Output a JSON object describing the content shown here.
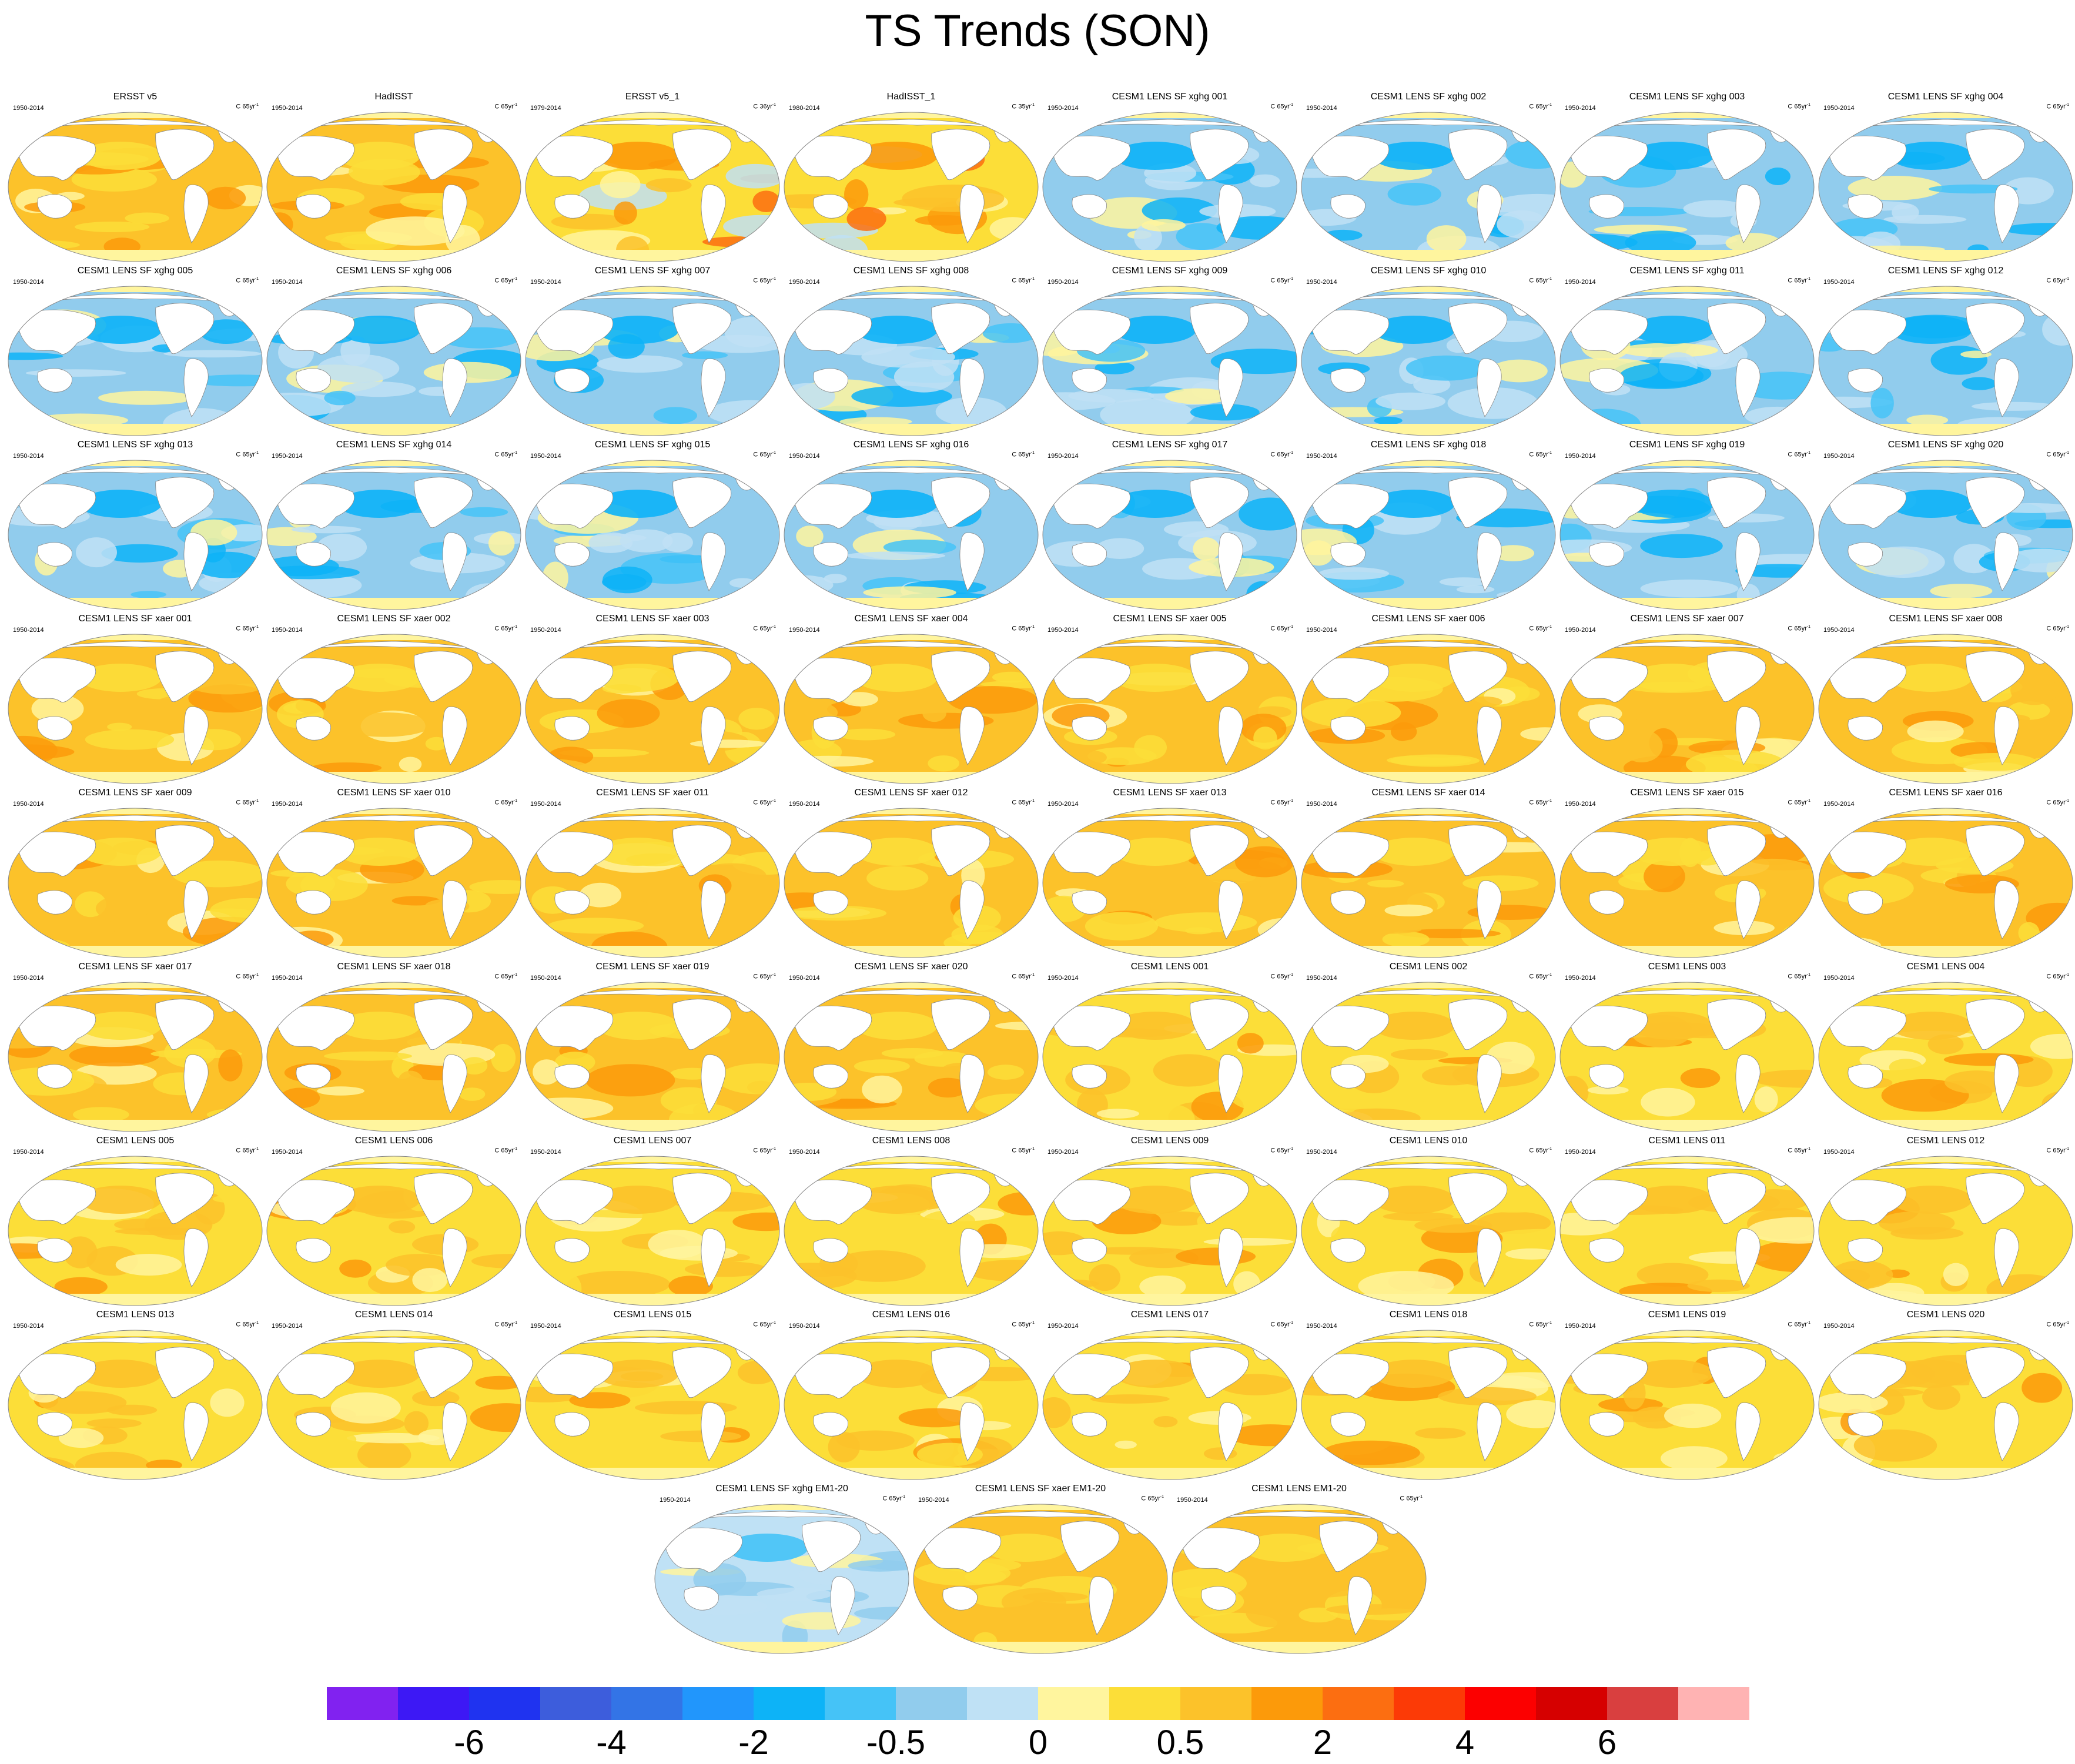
{
  "title": "TS Trends (SON)",
  "colors": {
    "land": "#ffffff",
    "outline": "#888888",
    "scale": [
      "#8122f0",
      "#3d18f5",
      "#1f33f0",
      "#3d5ddc",
      "#3374e6",
      "#2196fc",
      "#0db3f7",
      "#45c3f7",
      "#91cced",
      "#bfe1f5",
      "#fff59e",
      "#fcde38",
      "#fcc22a",
      "#fc9a0a",
      "#fc6e11",
      "#fc3a06",
      "#fc0000",
      "#d60000",
      "#d93f3f",
      "#ffb3b3"
    ]
  },
  "colorbar": {
    "labels": [
      "-6",
      "-4",
      "-2",
      "-0.5",
      "0",
      "0.5",
      "2",
      "4",
      "6"
    ]
  },
  "panels": [
    {
      "title": "ERSST v5",
      "years": "1950-2014",
      "units": "C 65yr",
      "regime": "obs"
    },
    {
      "title": "HadISST",
      "years": "1950-2014",
      "units": "C 65yr",
      "regime": "obs"
    },
    {
      "title": "ERSST v5_1",
      "years": "1979-2014",
      "units": "C 36yr",
      "regime": "obs2"
    },
    {
      "title": "HadISST_1",
      "years": "1980-2014",
      "units": "C 35yr",
      "regime": "obs2"
    },
    {
      "title": "CESM1 LENS SF xghg 001",
      "years": "1950-2014",
      "units": "C 65yr",
      "regime": "cool"
    },
    {
      "title": "CESM1 LENS SF xghg 002",
      "years": "1950-2014",
      "units": "C 65yr",
      "regime": "cool"
    },
    {
      "title": "CESM1 LENS SF xghg 003",
      "years": "1950-2014",
      "units": "C 65yr",
      "regime": "cool"
    },
    {
      "title": "CESM1 LENS SF xghg 004",
      "years": "1950-2014",
      "units": "C 65yr",
      "regime": "cool"
    },
    {
      "title": "CESM1 LENS SF xghg 005",
      "years": "1950-2014",
      "units": "C 65yr",
      "regime": "cool"
    },
    {
      "title": "CESM1 LENS SF xghg 006",
      "years": "1950-2014",
      "units": "C 65yr",
      "regime": "cool"
    },
    {
      "title": "CESM1 LENS SF xghg 007",
      "years": "1950-2014",
      "units": "C 65yr",
      "regime": "cool"
    },
    {
      "title": "CESM1 LENS SF xghg 008",
      "years": "1950-2014",
      "units": "C 65yr",
      "regime": "cool"
    },
    {
      "title": "CESM1 LENS SF xghg 009",
      "years": "1950-2014",
      "units": "C 65yr",
      "regime": "cool"
    },
    {
      "title": "CESM1 LENS SF xghg 010",
      "years": "1950-2014",
      "units": "C 65yr",
      "regime": "cool"
    },
    {
      "title": "CESM1 LENS SF xghg 011",
      "years": "1950-2014",
      "units": "C 65yr",
      "regime": "cool"
    },
    {
      "title": "CESM1 LENS SF xghg 012",
      "years": "1950-2014",
      "units": "C 65yr",
      "regime": "cool"
    },
    {
      "title": "CESM1 LENS SF xghg 013",
      "years": "1950-2014",
      "units": "C 65yr",
      "regime": "cool"
    },
    {
      "title": "CESM1 LENS SF xghg 014",
      "years": "1950-2014",
      "units": "C 65yr",
      "regime": "cool"
    },
    {
      "title": "CESM1 LENS SF xghg 015",
      "years": "1950-2014",
      "units": "C 65yr",
      "regime": "cool"
    },
    {
      "title": "CESM1 LENS SF xghg 016",
      "years": "1950-2014",
      "units": "C 65yr",
      "regime": "cool"
    },
    {
      "title": "CESM1 LENS SF xghg 017",
      "years": "1950-2014",
      "units": "C 65yr",
      "regime": "cool"
    },
    {
      "title": "CESM1 LENS SF xghg 018",
      "years": "1950-2014",
      "units": "C 65yr",
      "regime": "cool"
    },
    {
      "title": "CESM1 LENS SF xghg 019",
      "years": "1950-2014",
      "units": "C 65yr",
      "regime": "cool"
    },
    {
      "title": "CESM1 LENS SF xghg 020",
      "years": "1950-2014",
      "units": "C 65yr",
      "regime": "cool"
    },
    {
      "title": "CESM1 LENS SF xaer 001",
      "years": "1950-2014",
      "units": "C 65yr",
      "regime": "warm"
    },
    {
      "title": "CESM1 LENS SF xaer 002",
      "years": "1950-2014",
      "units": "C 65yr",
      "regime": "warm"
    },
    {
      "title": "CESM1 LENS SF xaer 003",
      "years": "1950-2014",
      "units": "C 65yr",
      "regime": "warm"
    },
    {
      "title": "CESM1 LENS SF xaer 004",
      "years": "1950-2014",
      "units": "C 65yr",
      "regime": "warm"
    },
    {
      "title": "CESM1 LENS SF xaer 005",
      "years": "1950-2014",
      "units": "C 65yr",
      "regime": "warm"
    },
    {
      "title": "CESM1 LENS SF xaer 006",
      "years": "1950-2014",
      "units": "C 65yr",
      "regime": "warm"
    },
    {
      "title": "CESM1 LENS SF xaer 007",
      "years": "1950-2014",
      "units": "C 65yr",
      "regime": "warm"
    },
    {
      "title": "CESM1 LENS SF xaer 008",
      "years": "1950-2014",
      "units": "C 65yr",
      "regime": "warm"
    },
    {
      "title": "CESM1 LENS SF xaer 009",
      "years": "1950-2014",
      "units": "C 65yr",
      "regime": "warm"
    },
    {
      "title": "CESM1 LENS SF xaer 010",
      "years": "1950-2014",
      "units": "C 65yr",
      "regime": "warm"
    },
    {
      "title": "CESM1 LENS SF xaer 011",
      "years": "1950-2014",
      "units": "C 65yr",
      "regime": "warm"
    },
    {
      "title": "CESM1 LENS SF xaer 012",
      "years": "1950-2014",
      "units": "C 65yr",
      "regime": "warm"
    },
    {
      "title": "CESM1 LENS SF xaer 013",
      "years": "1950-2014",
      "units": "C 65yr",
      "regime": "warm"
    },
    {
      "title": "CESM1 LENS SF xaer 014",
      "years": "1950-2014",
      "units": "C 65yr",
      "regime": "warm"
    },
    {
      "title": "CESM1 LENS SF xaer 015",
      "years": "1950-2014",
      "units": "C 65yr",
      "regime": "warm"
    },
    {
      "title": "CESM1 LENS SF xaer 016",
      "years": "1950-2014",
      "units": "C 65yr",
      "regime": "warm"
    },
    {
      "title": "CESM1 LENS SF xaer 017",
      "years": "1950-2014",
      "units": "C 65yr",
      "regime": "warm"
    },
    {
      "title": "CESM1 LENS SF xaer 018",
      "years": "1950-2014",
      "units": "C 65yr",
      "regime": "warm"
    },
    {
      "title": "CESM1 LENS SF xaer 019",
      "years": "1950-2014",
      "units": "C 65yr",
      "regime": "warm"
    },
    {
      "title": "CESM1 LENS SF xaer 020",
      "years": "1950-2014",
      "units": "C 65yr",
      "regime": "warm"
    },
    {
      "title": "CESM1 LENS 001",
      "years": "1950-2014",
      "units": "C 65yr",
      "regime": "mild"
    },
    {
      "title": "CESM1 LENS 002",
      "years": "1950-2014",
      "units": "C 65yr",
      "regime": "mild"
    },
    {
      "title": "CESM1 LENS 003",
      "years": "1950-2014",
      "units": "C 65yr",
      "regime": "mild"
    },
    {
      "title": "CESM1 LENS 004",
      "years": "1950-2014",
      "units": "C 65yr",
      "regime": "mild"
    },
    {
      "title": "CESM1 LENS 005",
      "years": "1950-2014",
      "units": "C 65yr",
      "regime": "mild"
    },
    {
      "title": "CESM1 LENS 006",
      "years": "1950-2014",
      "units": "C 65yr",
      "regime": "mild"
    },
    {
      "title": "CESM1 LENS 007",
      "years": "1950-2014",
      "units": "C 65yr",
      "regime": "mild"
    },
    {
      "title": "CESM1 LENS 008",
      "years": "1950-2014",
      "units": "C 65yr",
      "regime": "mild"
    },
    {
      "title": "CESM1 LENS 009",
      "years": "1950-2014",
      "units": "C 65yr",
      "regime": "mild"
    },
    {
      "title": "CESM1 LENS 010",
      "years": "1950-2014",
      "units": "C 65yr",
      "regime": "mild"
    },
    {
      "title": "CESM1 LENS 011",
      "years": "1950-2014",
      "units": "C 65yr",
      "regime": "mild"
    },
    {
      "title": "CESM1 LENS 012",
      "years": "1950-2014",
      "units": "C 65yr",
      "regime": "mild"
    },
    {
      "title": "CESM1 LENS 013",
      "years": "1950-2014",
      "units": "C 65yr",
      "regime": "mild"
    },
    {
      "title": "CESM1 LENS 014",
      "years": "1950-2014",
      "units": "C 65yr",
      "regime": "mild"
    },
    {
      "title": "CESM1 LENS 015",
      "years": "1950-2014",
      "units": "C 65yr",
      "regime": "mild"
    },
    {
      "title": "CESM1 LENS 016",
      "years": "1950-2014",
      "units": "C 65yr",
      "regime": "mild"
    },
    {
      "title": "CESM1 LENS 017",
      "years": "1950-2014",
      "units": "C 65yr",
      "regime": "mild"
    },
    {
      "title": "CESM1 LENS 018",
      "years": "1950-2014",
      "units": "C 65yr",
      "regime": "mild"
    },
    {
      "title": "CESM1 LENS 019",
      "years": "1950-2014",
      "units": "C 65yr",
      "regime": "mild"
    },
    {
      "title": "CESM1 LENS 020",
      "years": "1950-2014",
      "units": "C 65yr",
      "regime": "mild"
    },
    {
      "title": "CESM1 LENS SF xghg EM1-20",
      "years": "1950-2014",
      "units": "C 65yr",
      "regime": "coolmean"
    },
    {
      "title": "CESM1 LENS SF xaer EM1-20",
      "years": "1950-2014",
      "units": "C 65yr",
      "regime": "warmmean"
    },
    {
      "title": "CESM1 LENS EM1-20",
      "years": "1950-2014",
      "units": "C 65yr",
      "regime": "mildmean"
    }
  ]
}
